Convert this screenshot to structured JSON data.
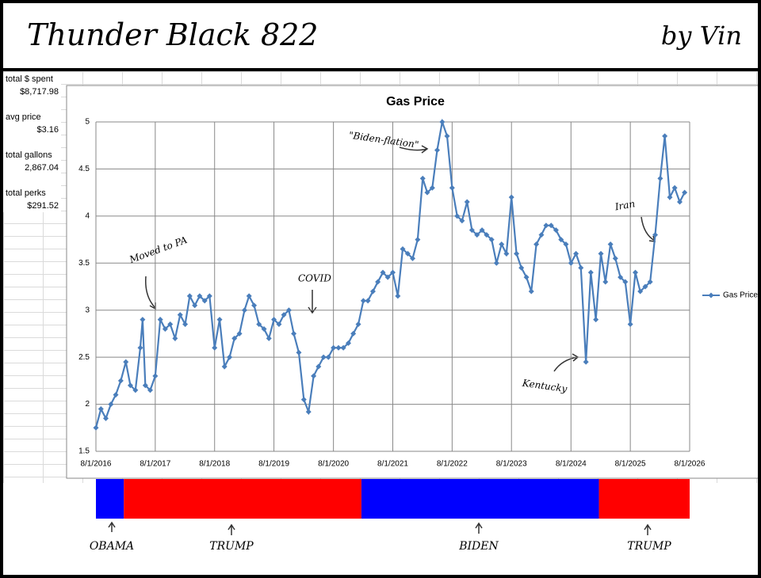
{
  "header": {
    "title": "Thunder Black 822",
    "signature": "by Vin"
  },
  "stats": [
    {
      "label": "total $ spent",
      "value": "$8,717.98"
    },
    {
      "label": "avg price",
      "value": "$3.16"
    },
    {
      "label": "total gallons",
      "value": "2,867.04"
    },
    {
      "label": "total perks",
      "value": "$291.52"
    }
  ],
  "chart_data": {
    "type": "line",
    "title": "Gas Price",
    "x": [
      "2016-08-01",
      "2016-09-01",
      "2016-10-01",
      "2016-11-01",
      "2016-12-01",
      "2017-01-01",
      "2017-02-01",
      "2017-03-01",
      "2017-04-01",
      "2017-05-01",
      "2017-05-15",
      "2017-06-01",
      "2017-07-01",
      "2017-08-01",
      "2017-09-01",
      "2017-10-01",
      "2017-11-01",
      "2017-12-01",
      "2018-01-01",
      "2018-02-01",
      "2018-03-01",
      "2018-04-01",
      "2018-05-01",
      "2018-06-01",
      "2018-07-01",
      "2018-08-01",
      "2018-09-01",
      "2018-10-01",
      "2018-11-01",
      "2018-12-01",
      "2019-01-01",
      "2019-02-01",
      "2019-03-01",
      "2019-04-01",
      "2019-05-01",
      "2019-06-01",
      "2019-07-01",
      "2019-08-01",
      "2019-09-01",
      "2019-10-01",
      "2019-11-01",
      "2019-12-01",
      "2020-01-01",
      "2020-02-01",
      "2020-03-01",
      "2020-04-01",
      "2020-05-01",
      "2020-06-01",
      "2020-07-01",
      "2020-08-01",
      "2020-09-01",
      "2020-10-01",
      "2020-11-01",
      "2020-12-01",
      "2021-01-01",
      "2021-02-01",
      "2021-03-01",
      "2021-04-01",
      "2021-05-01",
      "2021-06-01",
      "2021-07-01",
      "2021-08-01",
      "2021-09-01",
      "2021-10-01",
      "2021-11-01",
      "2021-12-01",
      "2022-01-01",
      "2022-02-01",
      "2022-03-01",
      "2022-04-01",
      "2022-05-01",
      "2022-06-01",
      "2022-07-01",
      "2022-08-01",
      "2022-09-01",
      "2022-10-01",
      "2022-11-01",
      "2022-12-01",
      "2023-01-01",
      "2023-02-01",
      "2023-03-01",
      "2023-04-01",
      "2023-05-01",
      "2023-06-01",
      "2023-07-01",
      "2023-08-01",
      "2023-09-01",
      "2023-10-01",
      "2023-11-01",
      "2023-12-01",
      "2024-01-01",
      "2024-02-01",
      "2024-03-01",
      "2024-04-01",
      "2024-05-01",
      "2024-06-01",
      "2024-07-01",
      "2024-08-01",
      "2024-09-01",
      "2024-10-01",
      "2024-11-01",
      "2024-12-01",
      "2025-01-01",
      "2025-02-01",
      "2025-03-01",
      "2025-04-01",
      "2025-05-01",
      "2025-06-01",
      "2025-07-01",
      "2025-08-01",
      "2025-09-01",
      "2025-10-01",
      "2025-11-01",
      "2025-12-01",
      "2026-01-01",
      "2026-02-01",
      "2026-03-01",
      "2026-04-01",
      "2026-05-01",
      "2026-06-01",
      "2026-07-01"
    ],
    "series": [
      {
        "name": "Gas Price",
        "color": "#4a7ebb",
        "values": [
          1.75,
          1.95,
          1.85,
          2.0,
          2.1,
          2.25,
          2.45,
          2.2,
          2.15,
          2.6,
          2.9,
          2.2,
          2.15,
          2.3,
          2.9,
          2.8,
          2.85,
          2.7,
          2.95,
          2.85,
          3.15,
          3.05,
          3.15,
          3.1,
          3.15,
          2.6,
          2.9,
          2.4,
          2.5,
          2.7,
          2.75,
          3.0,
          3.15,
          3.05,
          2.85,
          2.8,
          2.7,
          2.9,
          2.85,
          2.95,
          3.0,
          2.75,
          2.55,
          2.05,
          1.92,
          2.3,
          2.4,
          2.5,
          2.5,
          2.6,
          2.6,
          2.6,
          2.65,
          2.75,
          2.85,
          3.1,
          3.1,
          3.2,
          3.3,
          3.4,
          3.35,
          3.4,
          3.15,
          3.65,
          3.6,
          3.55,
          3.75,
          4.4,
          4.25,
          4.3,
          4.7,
          5.0,
          4.85,
          4.3,
          4.0,
          3.95,
          4.15,
          3.85,
          3.8,
          3.85,
          3.8,
          3.75,
          3.5,
          3.7,
          3.6,
          4.2,
          3.6,
          3.45,
          3.35,
          3.2,
          3.7,
          3.8,
          3.9,
          3.9,
          3.85,
          3.75,
          3.7,
          3.5,
          3.6,
          3.45,
          2.45,
          3.4,
          2.9,
          3.6,
          3.3,
          3.7,
          3.55,
          3.35,
          3.3,
          2.85,
          3.4,
          3.2,
          3.25,
          3.3,
          3.8,
          4.4,
          4.85,
          4.2,
          4.3,
          4.15,
          4.25
        ]
      }
    ],
    "xlim": [
      "2016-08-01",
      "2026-08-01"
    ],
    "xticks": [
      {
        "value": "2016-08-01",
        "label": "8/1/2016"
      },
      {
        "value": "2017-08-01",
        "label": "8/1/2017"
      },
      {
        "value": "2018-08-01",
        "label": "8/1/2018"
      },
      {
        "value": "2019-08-01",
        "label": "8/1/2019"
      },
      {
        "value": "2020-08-01",
        "label": "8/1/2020"
      },
      {
        "value": "2021-08-01",
        "label": "8/1/2021"
      },
      {
        "value": "2022-08-01",
        "label": "8/1/2022"
      },
      {
        "value": "2023-08-01",
        "label": "8/1/2023"
      },
      {
        "value": "2024-08-01",
        "label": "8/1/2024"
      },
      {
        "value": "2025-08-01",
        "label": "8/1/2025"
      },
      {
        "value": "2026-08-01",
        "label": "8/1/2026"
      }
    ],
    "ylim": [
      1.5,
      5
    ],
    "yticks": [
      1.5,
      2,
      2.5,
      3,
      3.5,
      4,
      4.5,
      5
    ],
    "grid": true,
    "legend": "right",
    "annotations": [
      "Moved to PA",
      "COVID",
      "\"Biden-flation\"",
      "Kentucky",
      "Iran"
    ],
    "terms": [
      {
        "label": "OBAMA",
        "start": "2016-08-01",
        "end": "2017-01-20",
        "color": "#0000ff"
      },
      {
        "label": "TRUMP",
        "start": "2017-01-20",
        "end": "2021-01-20",
        "color": "#ff0000"
      },
      {
        "label": "BIDEN",
        "start": "2021-01-20",
        "end": "2025-01-20",
        "color": "#0000ff"
      },
      {
        "label": "TRUMP",
        "start": "2025-01-20",
        "end": "2026-08-01",
        "color": "#ff0000"
      }
    ]
  }
}
